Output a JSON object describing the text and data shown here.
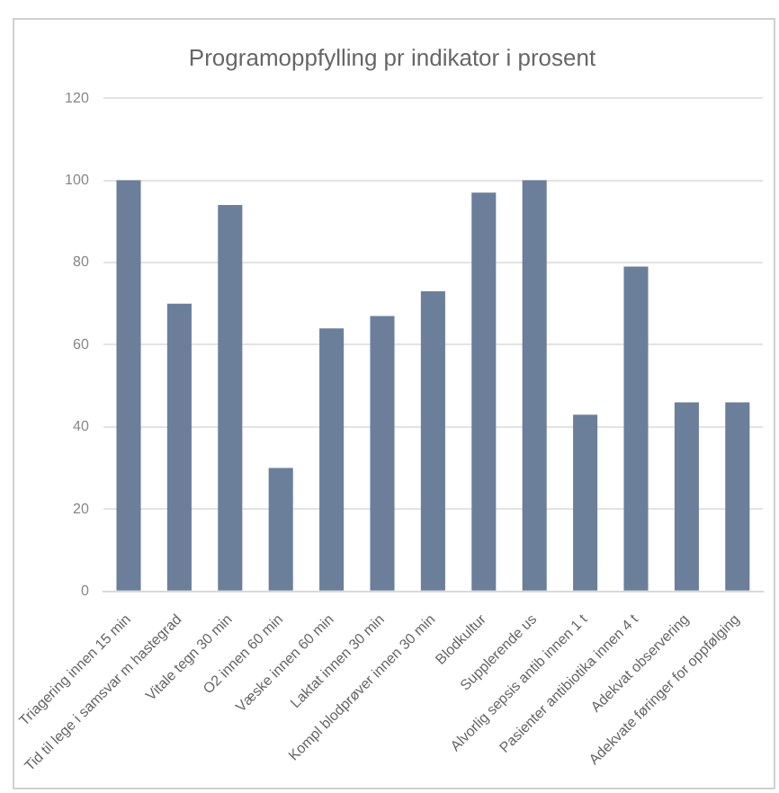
{
  "chart_data": {
    "type": "bar",
    "title": "Programoppfylling pr indikator i prosent",
    "categories": [
      "Triagering innen 15 min",
      "Tid til lege i samsvar m hastegrad",
      "Vitale tegn 30 min",
      "O2 innen 60 min",
      "Væske innen 60 min",
      "Laktat innen 30 min",
      "Kompl blodprøver innen 30 min",
      "Blodkultur",
      "Supplerende us",
      "Alvorlig sepsis antib innen 1 t",
      "Pasienter antibiotika innen 4 t",
      "Adekvat observering",
      "Adekvate føringer for oppfølging"
    ],
    "values": [
      100,
      70,
      94,
      30,
      64,
      67,
      73,
      97,
      100,
      43,
      79,
      46,
      46
    ],
    "color": "#6b7f9a",
    "ylim": [
      0,
      120
    ],
    "yticks": [
      0,
      20,
      40,
      60,
      80,
      100,
      120
    ],
    "grid": "y",
    "legend": false
  }
}
